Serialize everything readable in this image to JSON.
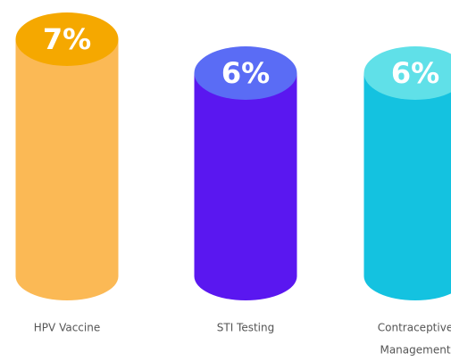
{
  "chart_data": {
    "type": "cylinder",
    "categories": [
      [
        "HPV Vaccine"
      ],
      [
        "STI Testing"
      ],
      [
        "Contraceptive",
        "Management"
      ]
    ],
    "values": [
      7,
      6,
      6
    ],
    "value_labels": [
      "7%",
      "6%",
      "6%"
    ],
    "colors": [
      "#fbb955",
      "#5a17f0",
      "#14c2e0"
    ],
    "top_colors": [
      "#f5a800",
      "#5a6cf5",
      "#60e0e8"
    ]
  }
}
